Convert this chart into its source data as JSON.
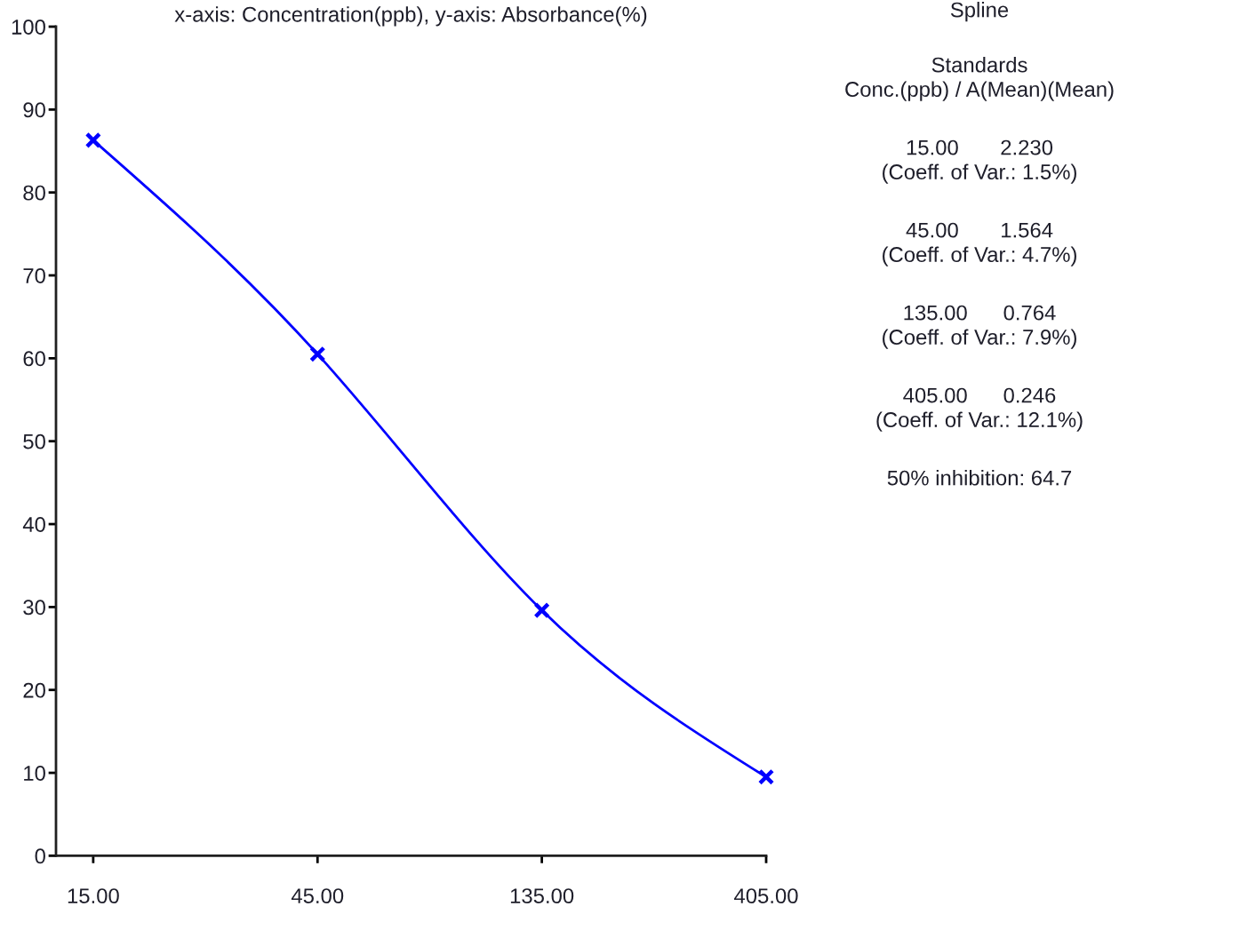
{
  "chart_data": {
    "type": "line",
    "title": "x-axis: Concentration(ppb), y-axis: Absorbance(%)",
    "x": [
      15,
      45,
      135,
      405
    ],
    "series": [
      {
        "color": "#0000ff",
        "values": [
          86.3,
          60.5,
          29.6,
          9.5
        ]
      }
    ],
    "log": "x",
    "xlim": [
      12.5,
      405
    ],
    "xticks": [
      {
        "value": 15,
        "label": "15.00"
      },
      {
        "value": 45,
        "label": "45.00"
      },
      {
        "value": 135,
        "label": "135.00"
      },
      {
        "value": 405,
        "label": "405.00"
      }
    ],
    "ylim": [
      0,
      100
    ],
    "yticks": [
      0,
      10,
      20,
      30,
      40,
      50,
      60,
      70,
      80,
      90,
      100
    ],
    "marker": "cross",
    "line_style": "solid",
    "grid": false,
    "annotations": [
      "Spline",
      "Standards\nConc.(ppb) / A(Mean)(Mean)",
      "15.00       2.230\n(Coeff. of Var.: 1.5%)",
      "45.00       1.564\n(Coeff. of Var.: 4.7%)",
      "135.00      0.764\n(Coeff. of Var.: 7.9%)",
      "405.00      0.246\n(Coeff. of Var.: 12.1%)",
      "50% inhibition: 64.7"
    ]
  }
}
